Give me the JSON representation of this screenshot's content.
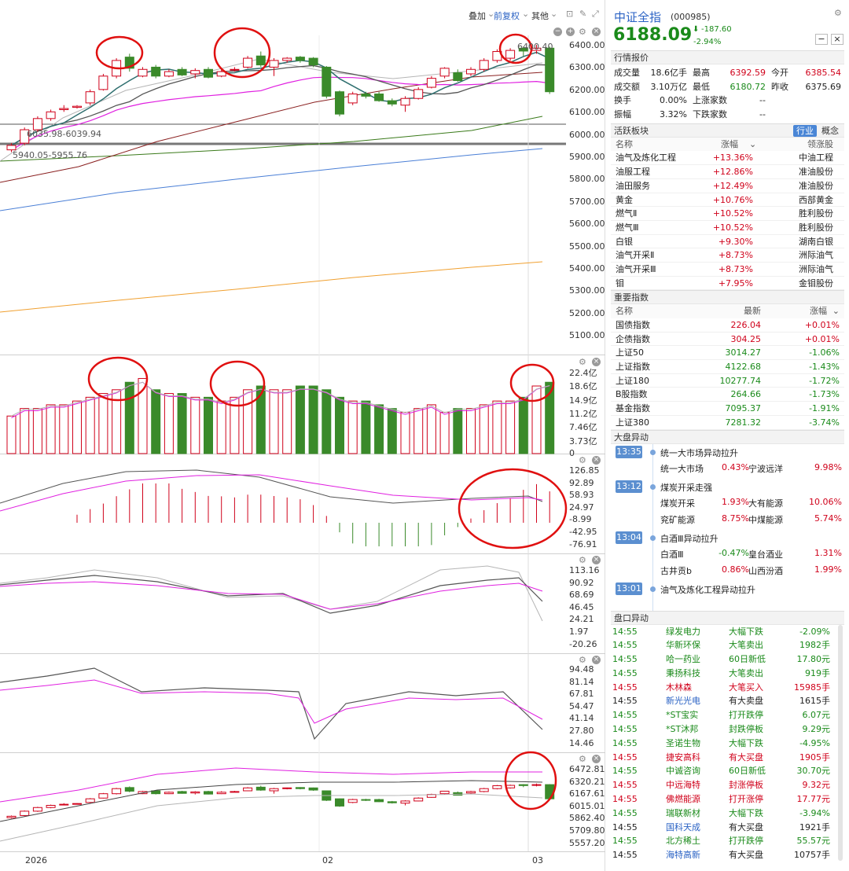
{
  "toolbar": {
    "overlay": "叠加",
    "adjust": "前复权",
    "other": "其他"
  },
  "price_axis": [
    "6400.00",
    "6300.00",
    "6200.00",
    "6100.00",
    "6000.00",
    "5900.00",
    "5800.00",
    "5700.00",
    "5600.00",
    "5500.00",
    "5400.00",
    "5300.00",
    "5200.00",
    "5100.00"
  ],
  "price_annotations": {
    "last": "6400.40",
    "box1": "6035.98-6039.94",
    "box2": "5940.05-5955.76"
  },
  "volume_axis": [
    "22.4亿",
    "18.6亿",
    "14.9亿",
    "11.2亿",
    "7.46亿",
    "3.73亿",
    "0"
  ],
  "macd_axis": [
    "126.85",
    "92.89",
    "58.93",
    "24.97",
    "-8.99",
    "-42.95",
    "-76.91"
  ],
  "ind2_axis": [
    "113.16",
    "90.92",
    "68.69",
    "46.45",
    "24.21",
    "1.97",
    "-20.26"
  ],
  "ind3_axis": [
    "94.48",
    "81.14",
    "67.81",
    "54.47",
    "41.14",
    "27.80",
    "14.46"
  ],
  "boll_axis": [
    "6472.81",
    "6320.21",
    "6167.61",
    "6015.01",
    "5862.40",
    "5709.80",
    "5557.20"
  ],
  "time_axis": [
    "2026",
    "02",
    "03"
  ],
  "colors": {
    "up": "#d0021b",
    "down": "#3a8a2a",
    "ma_dark": "#2f6f6f",
    "ma_pink": "#e020e0",
    "ma_gray": "#b5b5b5",
    "ma_brown": "#8a2020",
    "ma_green": "#3a7a1a",
    "ma_blue": "#4a7fd6",
    "ma_orange": "#f0a030",
    "annotation_circle": "#e01010"
  },
  "candles": [
    {
      "o": 5930,
      "c": 5950,
      "h": 5960,
      "l": 5920
    },
    {
      "o": 5960,
      "c": 6020,
      "h": 6030,
      "l": 5950
    },
    {
      "o": 6020,
      "c": 6070,
      "h": 6080,
      "l": 6010
    },
    {
      "o": 6070,
      "c": 6100,
      "h": 6110,
      "l": 6060
    },
    {
      "o": 6110,
      "c": 6115,
      "h": 6130,
      "l": 6100
    },
    {
      "o": 6120,
      "c": 6125,
      "h": 6130,
      "l": 6115
    },
    {
      "o": 6140,
      "c": 6190,
      "h": 6200,
      "l": 6130
    },
    {
      "o": 6200,
      "c": 6260,
      "h": 6270,
      "l": 6195
    },
    {
      "o": 6260,
      "c": 6330,
      "h": 6340,
      "l": 6250
    },
    {
      "o": 6345,
      "c": 6295,
      "h": 6360,
      "l": 6280
    },
    {
      "o": 6260,
      "c": 6290,
      "h": 6300,
      "l": 6255
    },
    {
      "o": 6300,
      "c": 6260,
      "h": 6310,
      "l": 6250
    },
    {
      "o": 6260,
      "c": 6280,
      "h": 6290,
      "l": 6255
    },
    {
      "o": 6290,
      "c": 6265,
      "h": 6300,
      "l": 6260
    },
    {
      "o": 6270,
      "c": 6285,
      "h": 6295,
      "l": 6250
    },
    {
      "o": 6290,
      "c": 6255,
      "h": 6300,
      "l": 6250
    },
    {
      "o": 6260,
      "c": 6280,
      "h": 6295,
      "l": 6255
    },
    {
      "o": 6290,
      "c": 6290,
      "h": 6300,
      "l": 6280
    },
    {
      "o": 6300,
      "c": 6340,
      "h": 6350,
      "l": 6295
    },
    {
      "o": 6350,
      "c": 6310,
      "h": 6370,
      "l": 6300
    },
    {
      "o": 6300,
      "c": 6330,
      "h": 6340,
      "l": 6260
    },
    {
      "o": 6330,
      "c": 6340,
      "h": 6345,
      "l": 6320
    },
    {
      "o": 6345,
      "c": 6330,
      "h": 6350,
      "l": 6320
    },
    {
      "o": 6340,
      "c": 6310,
      "h": 6345,
      "l": 6300
    },
    {
      "o": 6300,
      "c": 6170,
      "h": 6305,
      "l": 6160
    },
    {
      "o": 6190,
      "c": 6090,
      "h": 6195,
      "l": 6080
    },
    {
      "o": 6140,
      "c": 6180,
      "h": 6190,
      "l": 6130
    },
    {
      "o": 6180,
      "c": 6170,
      "h": 6190,
      "l": 6160
    },
    {
      "o": 6180,
      "c": 6150,
      "h": 6190,
      "l": 6145
    },
    {
      "o": 6150,
      "c": 6135,
      "h": 6160,
      "l": 6125
    },
    {
      "o": 6130,
      "c": 6160,
      "h": 6170,
      "l": 6100
    },
    {
      "o": 6160,
      "c": 6200,
      "h": 6210,
      "l": 6155
    },
    {
      "o": 6210,
      "c": 6250,
      "h": 6260,
      "l": 6205
    },
    {
      "o": 6260,
      "c": 6295,
      "h": 6300,
      "l": 6250
    },
    {
      "o": 6275,
      "c": 6240,
      "h": 6290,
      "l": 6235
    },
    {
      "o": 6270,
      "c": 6290,
      "h": 6300,
      "l": 6260
    },
    {
      "o": 6290,
      "c": 6330,
      "h": 6340,
      "l": 6280
    },
    {
      "o": 6330,
      "c": 6370,
      "h": 6380,
      "l": 6320
    },
    {
      "o": 6340,
      "c": 6375,
      "h": 6385,
      "l": 6330
    },
    {
      "o": 6385,
      "c": 6372,
      "h": 6392,
      "l": 6350
    },
    {
      "o": 6375,
      "c": 6385,
      "h": 6400,
      "l": 6360
    },
    {
      "o": 6385,
      "c": 6190,
      "h": 6392,
      "l": 6180
    }
  ],
  "volumes": [
    10,
    12,
    12,
    13,
    13,
    14,
    15,
    16,
    17,
    19,
    20,
    17,
    16,
    16,
    15,
    15,
    14,
    15,
    17,
    18,
    17,
    17,
    18,
    18,
    17,
    15,
    14,
    14,
    13,
    12,
    11,
    12,
    13,
    11,
    12,
    12,
    13,
    14,
    14,
    15,
    18,
    19
  ],
  "header": {
    "name": "中证全指",
    "code": "(000985)",
    "price": "6188.09",
    "change": "-187.60",
    "pct": "-2.94%"
  },
  "quote": {
    "title": "行情报价",
    "rows": [
      [
        {
          "k": "成交量",
          "v": "18.6亿手",
          "c": "black"
        },
        {
          "k": "最高",
          "v": "6392.59",
          "c": "red"
        },
        {
          "k": "今开",
          "v": "6385.54",
          "c": "red"
        }
      ],
      [
        {
          "k": "成交额",
          "v": "3.10万亿",
          "c": "black"
        },
        {
          "k": "最低",
          "v": "6180.72",
          "c": "green"
        },
        {
          "k": "昨收",
          "v": "6375.69",
          "c": "black"
        }
      ],
      [
        {
          "k": "换手",
          "v": "0.00%",
          "c": "black"
        },
        {
          "k": "上涨家数",
          "v": "--",
          "c": "black"
        }
      ],
      [
        {
          "k": "振幅",
          "v": "3.32%",
          "c": "black"
        },
        {
          "k": "下跌家数",
          "v": "--",
          "c": "black"
        }
      ]
    ]
  },
  "sectors": {
    "title": "活跃板块",
    "tabs": [
      "行业",
      "概念"
    ],
    "headers": [
      "名称",
      "涨幅",
      "领涨股"
    ],
    "rows": [
      [
        "油气及炼化工程",
        "+13.36%",
        "中油工程"
      ],
      [
        "油服工程",
        "+12.86%",
        "准油股份"
      ],
      [
        "油田服务",
        "+12.49%",
        "准油股份"
      ],
      [
        "黄金",
        "+10.76%",
        "西部黄金"
      ],
      [
        "燃气Ⅱ",
        "+10.52%",
        "胜利股份"
      ],
      [
        "燃气Ⅲ",
        "+10.52%",
        "胜利股份"
      ],
      [
        "白银",
        "+9.30%",
        "湖南白银"
      ],
      [
        "油气开采Ⅱ",
        "+8.73%",
        "洲际油气"
      ],
      [
        "油气开采Ⅲ",
        "+8.73%",
        "洲际油气"
      ],
      [
        "钼",
        "+7.95%",
        "金钼股份"
      ]
    ]
  },
  "indices": {
    "title": "重要指数",
    "headers": [
      "名称",
      "最新",
      "涨幅"
    ],
    "rows": [
      [
        "国债指数",
        "226.04",
        "+0.01%"
      ],
      [
        "企债指数",
        "304.25",
        "+0.01%"
      ],
      [
        "上证50",
        "3014.27",
        "-1.06%"
      ],
      [
        "上证指数",
        "4122.68",
        "-1.43%"
      ],
      [
        "上证180",
        "10277.74",
        "-1.72%"
      ],
      [
        "B股指数",
        "264.66",
        "-1.73%"
      ],
      [
        "基金指数",
        "7095.37",
        "-1.91%"
      ],
      [
        "上证380",
        "7281.32",
        "-3.74%"
      ]
    ]
  },
  "alerts": {
    "title": "大盘异动",
    "items": [
      {
        "time": "13:35",
        "title": "统一大市场异动拉升",
        "stocks": [
          [
            "统一大市场",
            "0.43%",
            "red"
          ],
          [
            "宁波远洋",
            "9.98%",
            "red"
          ]
        ]
      },
      {
        "time": "13:12",
        "title": "煤炭开采走强",
        "stocks": [
          [
            "煤炭开采",
            "1.93%",
            "red"
          ],
          [
            "大有能源",
            "10.06%",
            "red"
          ],
          [
            "兖矿能源",
            "8.75%",
            "red"
          ],
          [
            "中煤能源",
            "5.74%",
            "red"
          ]
        ]
      },
      {
        "time": "13:04",
        "title": "白酒Ⅲ异动拉升",
        "stocks": [
          [
            "白酒Ⅲ",
            "-0.47%",
            "green"
          ],
          [
            "皇台酒业",
            "1.31%",
            "red"
          ],
          [
            "古井贡b",
            "0.86%",
            "red"
          ],
          [
            "山西汾酒",
            "1.99%",
            "red"
          ]
        ]
      },
      {
        "time": "13:01",
        "title": "油气及炼化工程异动拉升",
        "stocks": []
      }
    ]
  },
  "tape": {
    "title": "盘口异动",
    "rows": [
      [
        "14:55",
        "绿发电力",
        "大幅下跌",
        "-2.09%",
        "green"
      ],
      [
        "14:55",
        "华新环保",
        "大笔卖出",
        "1982手",
        "green"
      ],
      [
        "14:55",
        "哈一药业",
        "60日新低",
        "17.80元",
        "green"
      ],
      [
        "14:55",
        "秉扬科技",
        "大笔卖出",
        "919手",
        "green"
      ],
      [
        "14:55",
        "木林森",
        "大笔买入",
        "15985手",
        "red"
      ],
      [
        "14:55",
        "新光光电",
        "有大卖盘",
        "1615手",
        "black"
      ],
      [
        "14:55",
        "*ST宝实",
        "打开跌停",
        "6.07元",
        "green"
      ],
      [
        "14:55",
        "*ST沐邦",
        "封跌停板",
        "9.29元",
        "green"
      ],
      [
        "14:55",
        "圣诺生物",
        "大幅下跌",
        "-4.95%",
        "green"
      ],
      [
        "14:55",
        "捷安高科",
        "有大买盘",
        "1905手",
        "red"
      ],
      [
        "14:55",
        "中诚咨询",
        "60日新低",
        "30.70元",
        "green"
      ],
      [
        "14:55",
        "中远海特",
        "封涨停板",
        "9.32元",
        "red"
      ],
      [
        "14:55",
        "佛燃能源",
        "打开涨停",
        "17.77元",
        "red"
      ],
      [
        "14:55",
        "瑞联新材",
        "大幅下跌",
        "-3.94%",
        "green"
      ],
      [
        "14:55",
        "国科天成",
        "有大买盘",
        "1921手",
        "black"
      ],
      [
        "14:55",
        "北方稀土",
        "打开跌停",
        "55.57元",
        "green"
      ],
      [
        "14:55",
        "海特高新",
        "有大买盘",
        "10757手",
        "black"
      ]
    ]
  }
}
